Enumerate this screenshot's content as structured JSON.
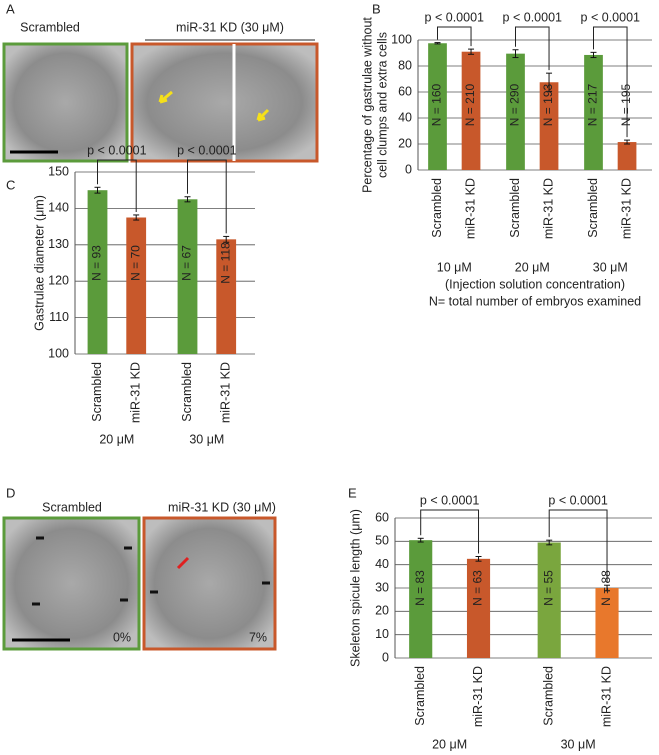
{
  "panels": {
    "a": {
      "letter": "A",
      "control": "Scrambled",
      "treatment": "miR-31 KD (30 μM)"
    },
    "d": {
      "letter": "D",
      "control": "Scrambled",
      "treatment": "miR-31 KD (30 μM)",
      "control_percent": "0%",
      "treatment_percent": "7%"
    }
  },
  "chart_data": [
    {
      "type": "bar",
      "letter": "B",
      "ylabel": [
        "Percentage of gastrulae without",
        "cell clumps and extra cells"
      ],
      "categories": [
        "Scrambled",
        "miR-31 KD",
        "Scrambled",
        "miR-31 KD",
        "Scrambled",
        "miR-31 KD"
      ],
      "groups": [
        "10 μM",
        "20 μM",
        "30 μM"
      ],
      "notes": [
        "(Injection solution concentration)",
        "N= total number of embryos examined"
      ],
      "values": [
        97.5,
        91,
        89.5,
        67.5,
        88.5,
        21.5
      ],
      "errors": [
        0.5,
        2,
        3,
        7,
        2,
        1.5
      ],
      "annotations": [
        "N = 160",
        "N = 210",
        "N = 290",
        "N = 193",
        "N = 217",
        "N = 195"
      ],
      "comparisons": [
        "p < 0.0001",
        "p < 0.0001",
        "p < 0.0001"
      ],
      "colors": [
        "#5b9b3b",
        "#c8582b",
        "#5b9b3b",
        "#c8582b",
        "#5b9b3b",
        "#c8582b"
      ],
      "ylim": [
        0,
        100
      ],
      "yticks": [
        0,
        20,
        40,
        60,
        80,
        100
      ],
      "grid": true
    },
    {
      "type": "bar",
      "letter": "C",
      "ylabel": [
        "Gastrulae diameter (μm)"
      ],
      "categories": [
        "Scrambled",
        "miR-31 KD",
        "Scrambled",
        "miR-31 KD"
      ],
      "groups": [
        "20 μM",
        "30 μM"
      ],
      "values": [
        145,
        137.5,
        142.5,
        131.5
      ],
      "errors": [
        0.8,
        0.7,
        0.7,
        0.8
      ],
      "annotations": [
        "N = 93",
        "N = 70",
        "N = 67",
        "N = 118"
      ],
      "comparisons": [
        "p < 0.0001",
        "p < 0.0001"
      ],
      "colors": [
        "#5b9b3b",
        "#c8582b",
        "#5b9b3b",
        "#c8582b"
      ],
      "ylim": [
        100,
        150
      ],
      "yticks": [
        100,
        110,
        120,
        130,
        140,
        150
      ],
      "grid": true
    },
    {
      "type": "bar",
      "letter": "E",
      "ylabel": [
        "Skeleton spicule length (μm)"
      ],
      "categories": [
        "Scrambled",
        "miR-31 KD",
        "Scrambled",
        "miR-31 KD"
      ],
      "groups": [
        "20 μM",
        "30 μM"
      ],
      "values": [
        50.5,
        42.5,
        49.5,
        30
      ],
      "errors": [
        0.8,
        1,
        1,
        1.2
      ],
      "annotations": [
        "N = 83",
        "N = 63",
        "N = 55",
        "N = 88"
      ],
      "comparisons": [
        "p < 0.0001",
        "p < 0.0001"
      ],
      "colors": [
        "#5b9b3b",
        "#c8582b",
        "#7aa63e",
        "#e8782c"
      ],
      "ylim": [
        0,
        60
      ],
      "yticks": [
        0,
        10,
        20,
        30,
        40,
        50,
        60
      ],
      "grid": true
    }
  ]
}
